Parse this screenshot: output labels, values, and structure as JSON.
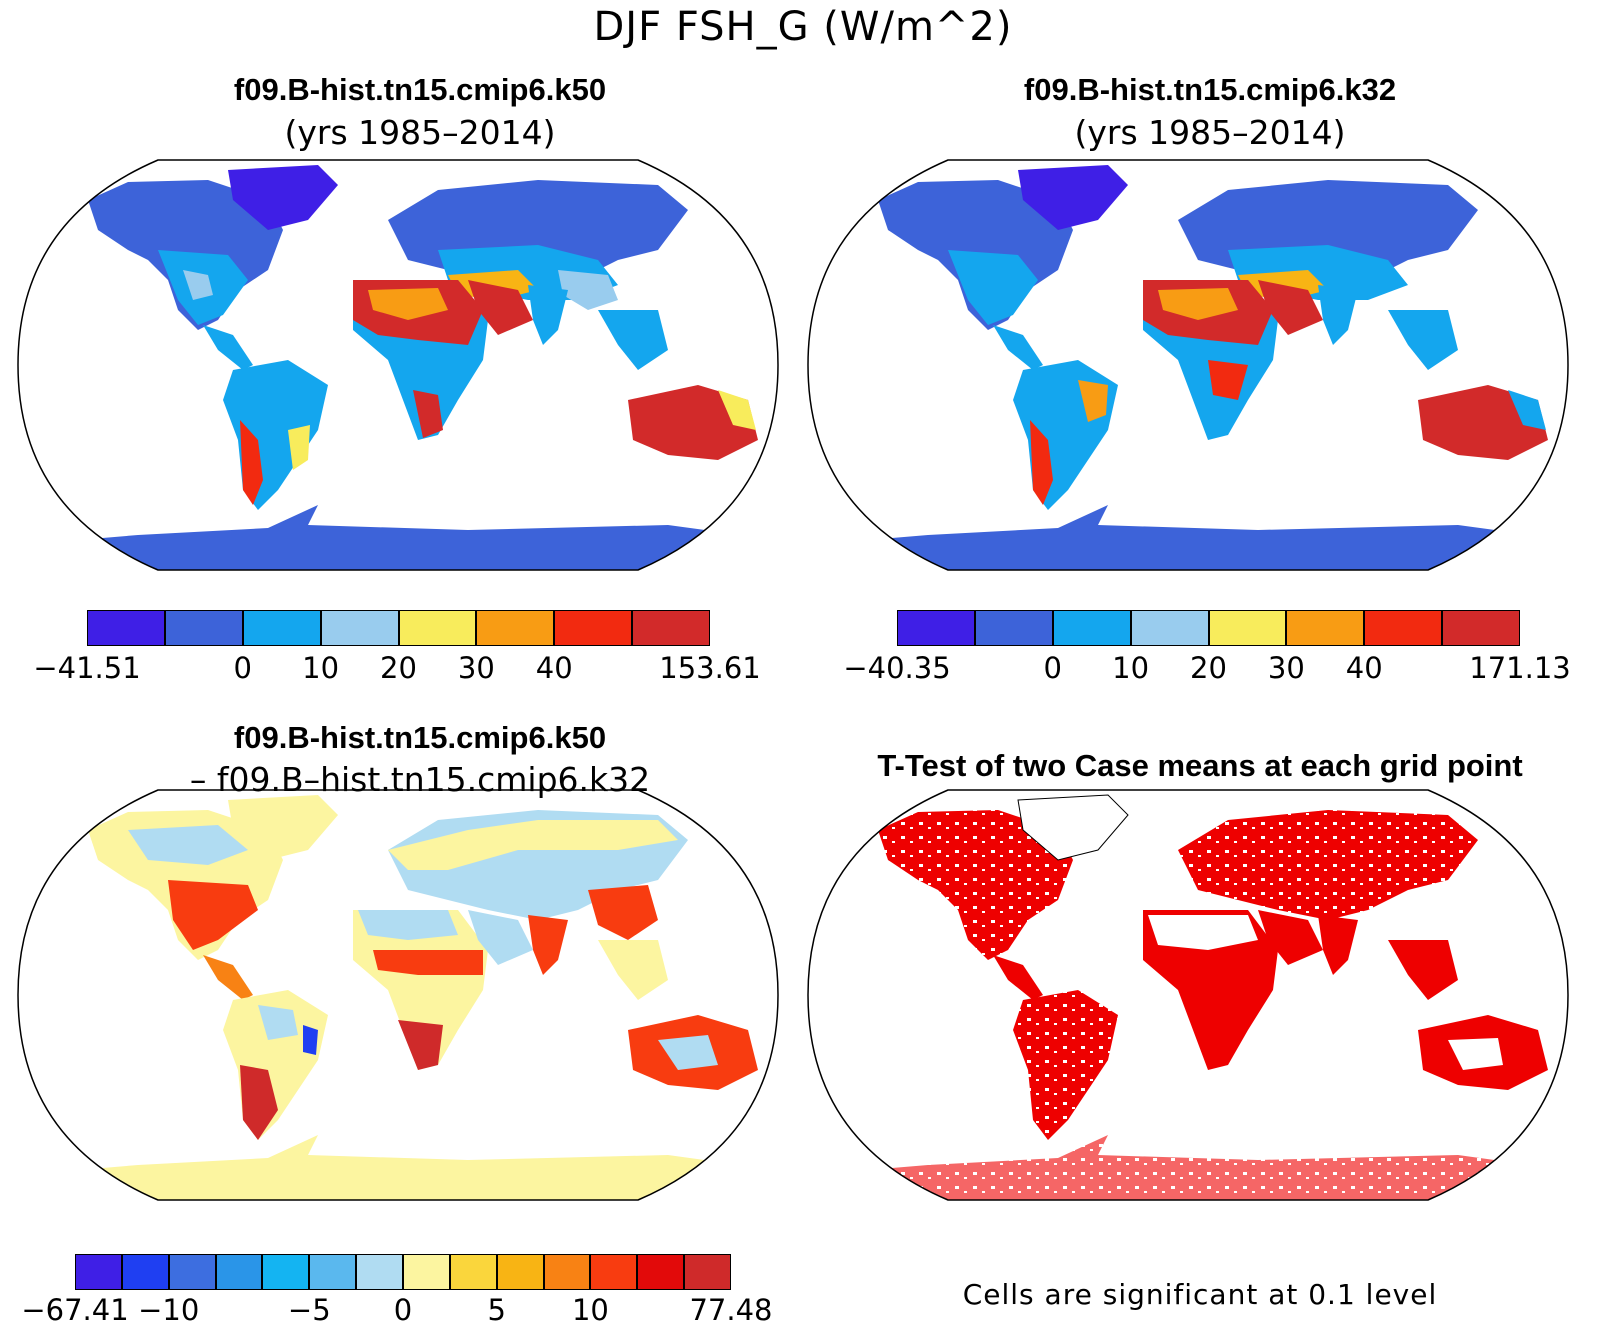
{
  "title": "DJF FSH_G (W/m^2)",
  "panels": [
    {
      "name": "case1",
      "title": "f09.B-hist.tn15.cmip6.k50",
      "subtitle": "(yrs 1985–2014)"
    },
    {
      "name": "case2",
      "title": "f09.B-hist.tn15.cmip6.k32",
      "subtitle": "(yrs 1985–2014)"
    },
    {
      "name": "difference",
      "title": "f09.B-hist.tn15.cmip6.k50",
      "subtitle": "– f09.B–hist.tn15.cmip6.k32"
    },
    {
      "name": "ttest",
      "title": "T-Test of two Case means at each grid point",
      "subtitle": ""
    }
  ],
  "colorbars": [
    {
      "labels": [
        "−41.51",
        "0",
        "10",
        "20",
        "30",
        "40",
        "153.61"
      ],
      "colors": [
        "#3f1fe6",
        "#3d63d9",
        "#14a6ee",
        "#99ccee",
        "#f8ec5c",
        "#f89c14",
        "#f22a10",
        "#d22a2a"
      ]
    },
    {
      "labels": [
        "−40.35",
        "0",
        "10",
        "20",
        "30",
        "40",
        "171.13"
      ],
      "colors": [
        "#3f1fe6",
        "#3d63d9",
        "#14a6ee",
        "#99ccee",
        "#f8ec5c",
        "#f89c14",
        "#f22a10",
        "#d22a2a"
      ]
    },
    {
      "labels": [
        "−67.41",
        "−10",
        "−5",
        "0",
        "5",
        "10",
        "77.48"
      ],
      "colors": [
        "#3f1fe6",
        "#1f3ff2",
        "#3d6ee0",
        "#2a95e8",
        "#14b4f2",
        "#5ab8ee",
        "#b0dcf2",
        "#fcf5a0",
        "#fad63c",
        "#f8b414",
        "#f88214",
        "#f83c10",
        "#e20a0a",
        "#cf2a2a"
      ]
    }
  ],
  "ttest_note": "Cells are significant at 0.1 level",
  "significance_color": "#ee0000"
}
